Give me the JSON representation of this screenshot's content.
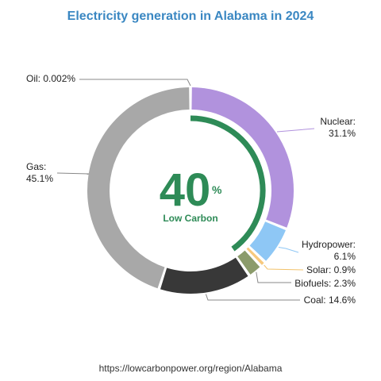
{
  "chart_data": {
    "type": "pie",
    "title": "Electricity generation in Alabama in 2024",
    "slices": [
      {
        "name": "Nuclear",
        "value": 31.1,
        "label_name": "Nuclear:",
        "label_value": "31.1%",
        "color": "#b192dd"
      },
      {
        "name": "Hydropower",
        "value": 6.1,
        "label_name": "Hydropower:",
        "label_value": "6.1%",
        "color": "#8ec7f5"
      },
      {
        "name": "Solar",
        "value": 0.9,
        "label_name": "Solar: 0.9%",
        "label_value": "",
        "color": "#f7c97d"
      },
      {
        "name": "Biofuels",
        "value": 2.3,
        "label_name": "Biofuels: 2.3%",
        "label_value": "",
        "color": "#8b9b6b"
      },
      {
        "name": "Coal",
        "value": 14.6,
        "label_name": "Coal: 14.6%",
        "label_value": "",
        "color": "#383838"
      },
      {
        "name": "Gas",
        "value": 45.1,
        "label_name": "Gas:",
        "label_value": "45.1%",
        "color": "#a8a8a8"
      },
      {
        "name": "Oil",
        "value": 0.002,
        "label_name": "Oil: 0.002%",
        "label_value": "",
        "color": "#a8a8a8"
      }
    ],
    "center": {
      "value": "40",
      "unit": "%",
      "caption": "Low Carbon",
      "fraction": 40
    },
    "source": "https://lowcarbonpower.org/region/Alabama"
  },
  "colors": {
    "title": "#3a87c2",
    "low_carbon": "#2e8b57",
    "leader": "#888888"
  }
}
